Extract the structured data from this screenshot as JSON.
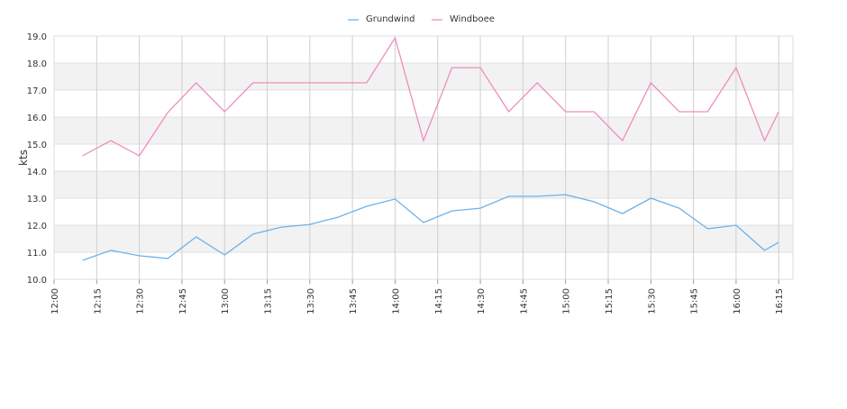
{
  "chart_data": {
    "type": "line",
    "y_label": "kts",
    "x": [
      "12:10",
      "12:20",
      "12:30",
      "12:40",
      "12:50",
      "13:00",
      "13:10",
      "13:20",
      "13:30",
      "13:40",
      "13:50",
      "14:00",
      "14:10",
      "14:20",
      "14:30",
      "14:40",
      "14:50",
      "15:00",
      "15:10",
      "15:20",
      "15:30",
      "15:40",
      "15:50",
      "16:00",
      "16:10",
      "16:15"
    ],
    "xlim": [
      "12:00",
      "16:20"
    ],
    "xticks": [
      "12:00",
      "12:15",
      "12:30",
      "12:45",
      "13:00",
      "13:15",
      "13:30",
      "13:45",
      "14:00",
      "14:15",
      "14:30",
      "14:45",
      "15:00",
      "15:15",
      "15:30",
      "15:45",
      "16:00",
      "16:15"
    ],
    "ylim": [
      10,
      19
    ],
    "yticks": [
      {
        "value": 10,
        "label": "10.0"
      },
      {
        "value": 11,
        "label": "11.0"
      },
      {
        "value": 12,
        "label": "12.0"
      },
      {
        "value": 13,
        "label": "13.0"
      },
      {
        "value": 14,
        "label": "14.0"
      },
      {
        "value": 15,
        "label": "15.0"
      },
      {
        "value": 16,
        "label": "16.0"
      },
      {
        "value": 17,
        "label": "17.0"
      },
      {
        "value": 18,
        "label": "18.0"
      },
      {
        "value": 19,
        "label": "19.0"
      }
    ],
    "grid": true,
    "legend": "top",
    "series": [
      {
        "name": "Grundwind",
        "color": "#6cb2eb",
        "values": [
          10.7,
          11.07,
          10.87,
          10.77,
          11.57,
          10.9,
          11.67,
          11.93,
          12.03,
          12.3,
          12.7,
          12.97,
          12.1,
          12.53,
          12.63,
          13.07,
          13.07,
          13.13,
          12.87,
          12.43,
          13.0,
          12.63,
          11.87,
          12.0,
          11.07,
          11.37
        ]
      },
      {
        "name": "Windboee",
        "color": "#f08cbf",
        "values": [
          14.57,
          15.13,
          14.57,
          16.17,
          17.27,
          16.2,
          17.27,
          17.27,
          17.27,
          17.27,
          17.27,
          18.93,
          15.13,
          17.83,
          17.83,
          16.2,
          17.27,
          16.2,
          16.2,
          15.13,
          17.27,
          16.2,
          16.2,
          17.83,
          15.13,
          16.2
        ]
      }
    ]
  }
}
